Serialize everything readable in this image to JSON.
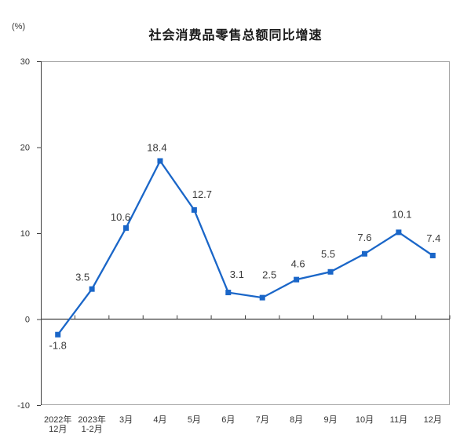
{
  "chart_data": {
    "type": "line",
    "title": "社会消费品零售总额同比增速",
    "unit_label": "(%)",
    "categories": [
      [
        "2022年",
        "12月"
      ],
      [
        "2023年",
        "1-2月"
      ],
      [
        "3月"
      ],
      [
        "4月"
      ],
      [
        "5月"
      ],
      [
        "6月"
      ],
      [
        "7月"
      ],
      [
        "8月"
      ],
      [
        "9月"
      ],
      [
        "10月"
      ],
      [
        "11月"
      ],
      [
        "12月"
      ]
    ],
    "values": [
      -1.8,
      3.5,
      10.6,
      18.4,
      12.7,
      3.1,
      2.5,
      4.6,
      5.5,
      7.6,
      10.1,
      7.4
    ],
    "labels": [
      "-1.8",
      "3.5",
      "10.6",
      "18.4",
      "12.7",
      "3.1",
      "2.5",
      "4.6",
      "5.5",
      "7.6",
      "10.1",
      "7.4"
    ],
    "y_axis": {
      "ticks": [
        30,
        20,
        10,
        0,
        -10
      ],
      "min": -10,
      "max": 30
    },
    "marker": "square",
    "grid": false,
    "legend": "none",
    "colors": {
      "series_line": "#1a66c8",
      "marker_fill": "#1a66c8",
      "data_label": "#3a3a3a",
      "axis_text": "#333333",
      "axis_line": "#404040",
      "plot_border": "#a6a6a6",
      "background": "#ffffff"
    }
  }
}
